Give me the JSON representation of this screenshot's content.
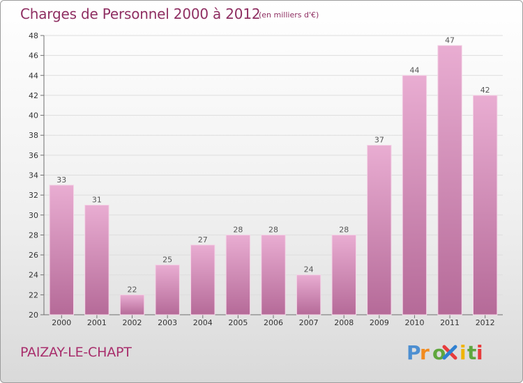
{
  "header": {
    "title": "Charges de Personnel 2000 à 2012",
    "subtitle": "(en milliers d'€)"
  },
  "footer": {
    "place": "PAIZAY-LE-CHAPT",
    "logo_text": "Proxiti"
  },
  "colors": {
    "bar_top": "#e9add2",
    "bar_bottom": "#b56a98",
    "bar_edge": "#f4d5e7",
    "title": "#8f2f62",
    "place": "#a82e6c",
    "grid": "#dddddd",
    "axis": "#6f6f6f"
  },
  "chart_data": {
    "type": "bar",
    "title": "Charges de Personnel 2000 à 2012",
    "subtitle": "(en milliers d'€)",
    "categories": [
      "2000",
      "2001",
      "2002",
      "2003",
      "2004",
      "2005",
      "2006",
      "2007",
      "2008",
      "2009",
      "2010",
      "2011",
      "2012"
    ],
    "values": [
      33,
      31,
      22,
      25,
      27,
      28,
      28,
      24,
      28,
      37,
      44,
      47,
      42
    ],
    "ylim": [
      20,
      48
    ],
    "yticks": [
      20,
      22,
      24,
      26,
      28,
      30,
      32,
      34,
      36,
      38,
      40,
      42,
      44,
      46,
      48
    ],
    "grid": true,
    "data_labels": true
  }
}
